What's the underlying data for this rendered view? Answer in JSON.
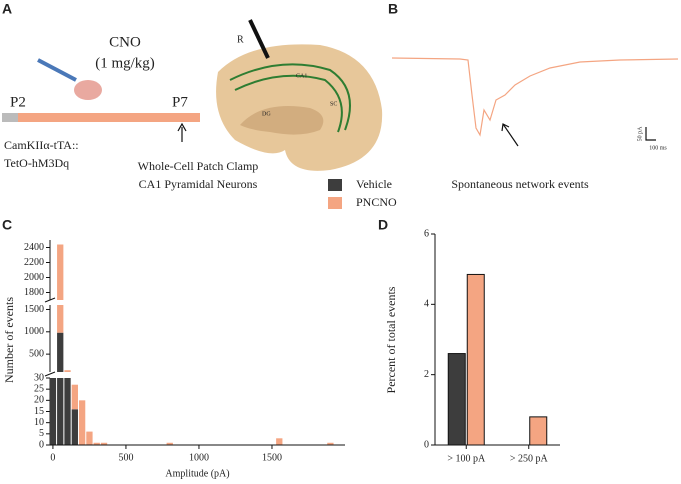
{
  "figure": {
    "panel_labels": [
      "A",
      "B",
      "C",
      "D"
    ],
    "panel_a": {
      "drug": "CNO",
      "dose": "(1 mg/kg)",
      "start": "P2",
      "end": "P7",
      "genotype_1": "CamKIIα-tTA::",
      "genotype_2": "TetO-hM3Dq",
      "method_1": "Whole-Cell Patch Clamp",
      "method_2": "CA1 Pyramidal Neurons",
      "electrode": "R",
      "region_ca1": "CA1",
      "region_dg": "DG",
      "region_sc": "SC"
    },
    "panel_b": {
      "caption": "Spontaneous network events",
      "scale_y": "50 pA",
      "scale_x": "100 ms"
    }
  },
  "chart_data": [
    {
      "type": "histogram",
      "x_label": "Amplitude (pA)",
      "y_label": "Number of events",
      "bins": [
        -25,
        25,
        75,
        125,
        175,
        225,
        275,
        325,
        375,
        425,
        475,
        525,
        575,
        625,
        675,
        725,
        775,
        825,
        875,
        925,
        975,
        1025,
        1075,
        1125,
        1175,
        1225,
        1275,
        1325,
        1375,
        1425,
        1475,
        1525,
        1575,
        1625,
        1675,
        1725,
        1775,
        1825,
        1875,
        1925,
        1975
      ],
      "xlim": [
        -20,
        2000
      ],
      "xticks": [
        0,
        500,
        1000,
        1500
      ],
      "y_segments": [
        {
          "ylim": [
            0,
            30
          ],
          "yticks": [
            0,
            5,
            10,
            15,
            20,
            25,
            30
          ]
        },
        {
          "ylim": [
            100,
            1600
          ],
          "yticks": [
            500,
            1000,
            1500
          ]
        },
        {
          "ylim": [
            1700,
            2500
          ],
          "yticks": [
            1800,
            2000,
            2200,
            2400
          ]
        }
      ],
      "stacked": true,
      "series": [
        {
          "name": "Vehicle",
          "color": "#3d3d3d",
          "values": [
            40,
            980,
            80,
            16,
            0,
            0,
            0,
            0,
            0,
            0,
            0,
            0,
            0,
            0,
            0,
            0,
            0,
            0,
            0,
            0,
            0,
            0,
            0,
            0,
            0,
            0,
            0,
            0,
            0,
            0,
            0,
            0,
            0,
            0,
            0,
            0,
            0,
            0,
            0,
            0
          ]
        },
        {
          "name": "PNCNO",
          "color": "#f4a582",
          "values": [
            40,
            1460,
            60,
            11,
            20,
            6,
            1,
            1,
            0,
            0,
            0,
            0,
            0,
            0,
            0,
            0,
            1,
            0,
            0,
            0,
            0,
            0,
            0,
            0,
            0,
            0,
            0,
            0,
            0,
            0,
            0,
            3,
            0,
            0,
            0,
            0,
            0,
            0,
            1,
            0
          ]
        }
      ]
    },
    {
      "type": "bar",
      "y_label": "Percent of total events",
      "categories": [
        "> 100 pA",
        "> 250 pA"
      ],
      "ylim": [
        0,
        6
      ],
      "yticks": [
        0,
        2,
        4,
        6
      ],
      "series": [
        {
          "color": "#3d3d3d",
          "values": [
            2.6,
            0
          ]
        },
        {
          "color": "#f4a582",
          "values": [
            4.85,
            0.8
          ]
        }
      ]
    }
  ]
}
